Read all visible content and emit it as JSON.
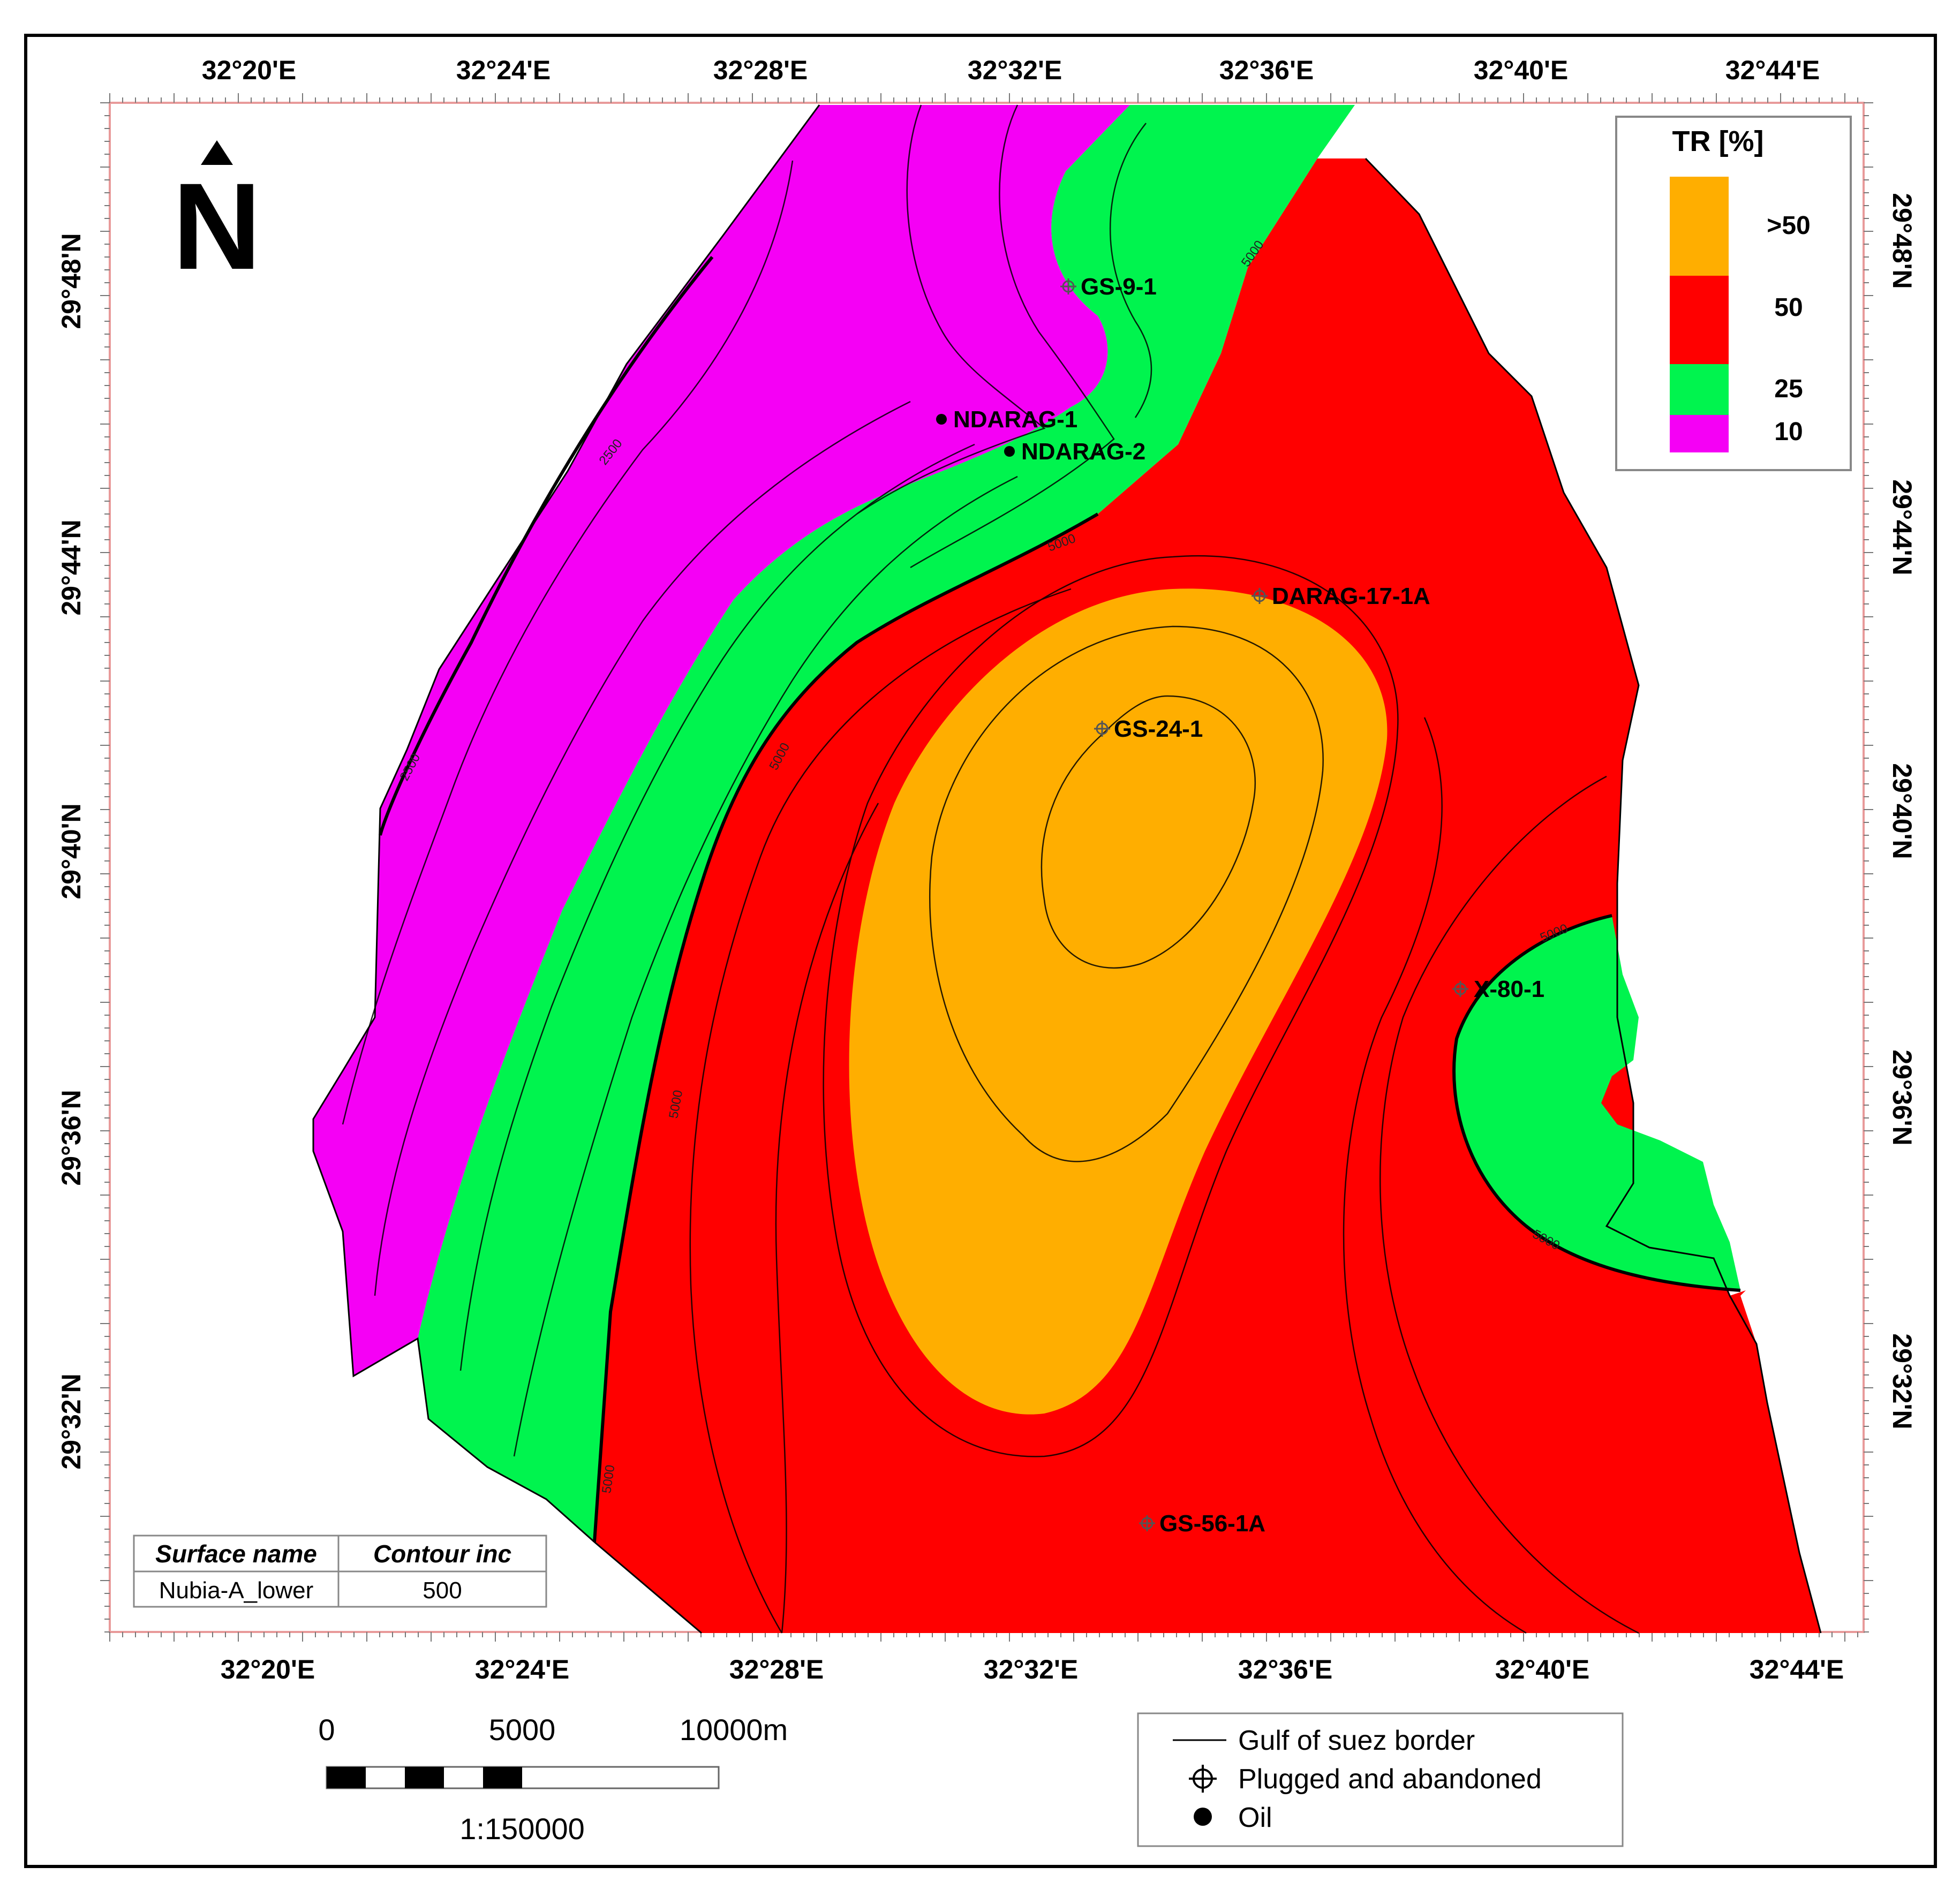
{
  "map": {
    "coordinates": {
      "top_longitudes": [
        "32°20'E",
        "32°24'E",
        "32°28'E",
        "32°32'E",
        "32°36'E",
        "32°40'E",
        "32°44'E"
      ],
      "bottom_longitudes": [
        "32°20'E",
        "32°24'E",
        "32°28'E",
        "32°32'E",
        "32°36'E",
        "32°40'E",
        "32°44'E"
      ],
      "left_latitudes": [
        "29°48'N",
        "29°44'N",
        "29°40'N",
        "29°36'N",
        "29°32'N"
      ],
      "right_latitudes": [
        "29°48'N",
        "29°44'N",
        "29°40'N",
        "29°36'N",
        "29°32'N"
      ]
    },
    "north_arrow": {
      "letter": "N",
      "icon": "north-arrow-icon"
    },
    "contour_labels": [
      "2500",
      "2500",
      "5000",
      "5000",
      "5000",
      "5000",
      "5000",
      "5000",
      "5000"
    ],
    "wells": [
      {
        "name": "GS-9-1",
        "type": "Plugged and abandoned"
      },
      {
        "name": "NDARAG-1",
        "type": "Oil"
      },
      {
        "name": "NDARAG-2",
        "type": "Oil"
      },
      {
        "name": "DARAG-17-1A",
        "type": "Plugged and abandoned"
      },
      {
        "name": "GS-24-1",
        "type": "Plugged and abandoned"
      },
      {
        "name": "X-80-1",
        "type": "Plugged and abandoned"
      },
      {
        "name": "GS-56-1A",
        "type": "Plugged and abandoned"
      }
    ],
    "zone_colors": {
      ">50": "#FFAE00",
      "50": "#FF0000",
      "25": "#00F44E",
      "10": "#F500F5"
    }
  },
  "legend": {
    "title": "TR [%]",
    "items": [
      {
        "label": ">50",
        "color": "#FFAE00"
      },
      {
        "label": "50",
        "color": "#FF0000"
      },
      {
        "label": "25",
        "color": "#00F44E"
      },
      {
        "label": "10",
        "color": "#F500F5"
      }
    ]
  },
  "info_table": {
    "headers": [
      "Surface name",
      "Contour inc"
    ],
    "values": [
      "Nubia-A_lower",
      "500"
    ]
  },
  "scale_bar": {
    "labels": [
      "0",
      "5000",
      "10000m"
    ],
    "ratio": "1:150000"
  },
  "symbol_legend": {
    "items": [
      {
        "label": "Gulf of suez border",
        "icon": "line-icon"
      },
      {
        "label": "Plugged and abandoned",
        "icon": "crosshair-icon"
      },
      {
        "label": "Oil",
        "icon": "dot-icon"
      }
    ]
  }
}
